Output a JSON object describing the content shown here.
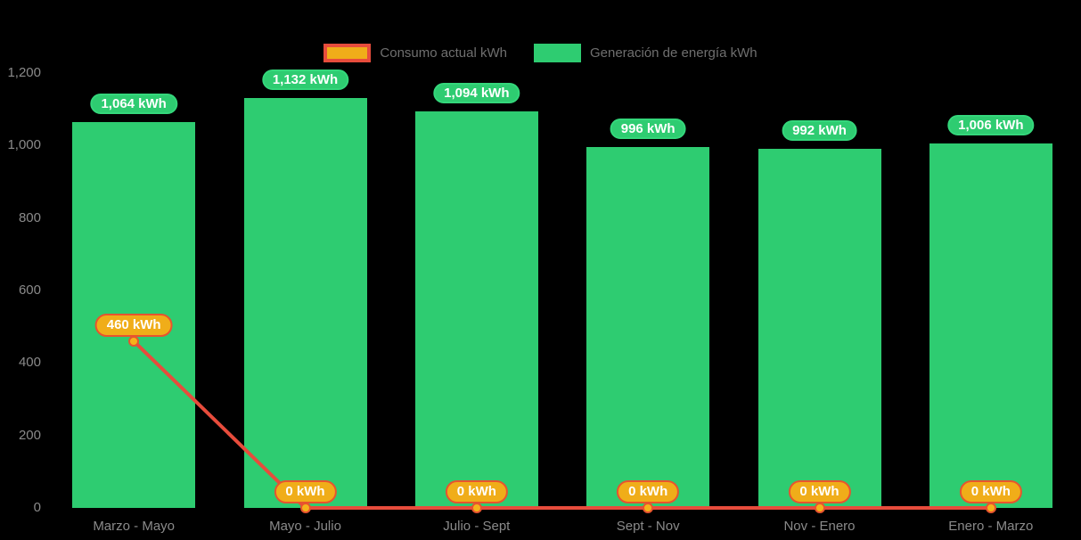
{
  "legend": {
    "items": [
      {
        "label": "Consumo actual kWh"
      },
      {
        "label": "Generación de energía kWh"
      }
    ]
  },
  "chart_data": {
    "type": "bar+line",
    "categories": [
      "Marzo - Mayo",
      "Mayo - Julio",
      "Julio - Sept",
      "Sept - Nov",
      "Nov - Enero",
      "Enero - Marzo"
    ],
    "series": [
      {
        "name": "Consumo actual kWh",
        "type": "line",
        "values": [
          460,
          0,
          0,
          0,
          0,
          0
        ],
        "point_labels": [
          "460 kWh",
          "0 kWh",
          "0 kWh",
          "0 kWh",
          "0 kWh",
          "0 kWh"
        ]
      },
      {
        "name": "Generación de energía kWh",
        "type": "bar",
        "values": [
          1064,
          1132,
          1094,
          996,
          992,
          1006
        ],
        "bar_labels": [
          "1,064 kWh",
          "1,132 kWh",
          "1,094 kWh",
          "996 kWh",
          "992 kWh",
          "1,006 kWh"
        ]
      }
    ],
    "title": "",
    "xlabel": "",
    "ylabel": "",
    "ylim": [
      0,
      1200
    ],
    "y_tick_step": 200,
    "y_tick_labels": [
      "0",
      "200",
      "400",
      "600",
      "800",
      "1,000",
      "1,200"
    ],
    "grid": false,
    "legend_position": "top-center",
    "colors": {
      "background": "#000000",
      "bar": "#2ecc71",
      "bar_label_bg": "#2ecc71",
      "bar_label_border": "#34d77b",
      "bar_label_text": "#ffffff",
      "line": "#e74c3c",
      "marker_fill": "#f5b31a",
      "marker_stroke": "#e7532f",
      "point_label_bg": "#f0ad19",
      "point_label_border": "#e7542f",
      "point_label_text": "#ffffff",
      "axis_text": "#8a8a8a",
      "legend_text": "#6f6f6f"
    }
  }
}
